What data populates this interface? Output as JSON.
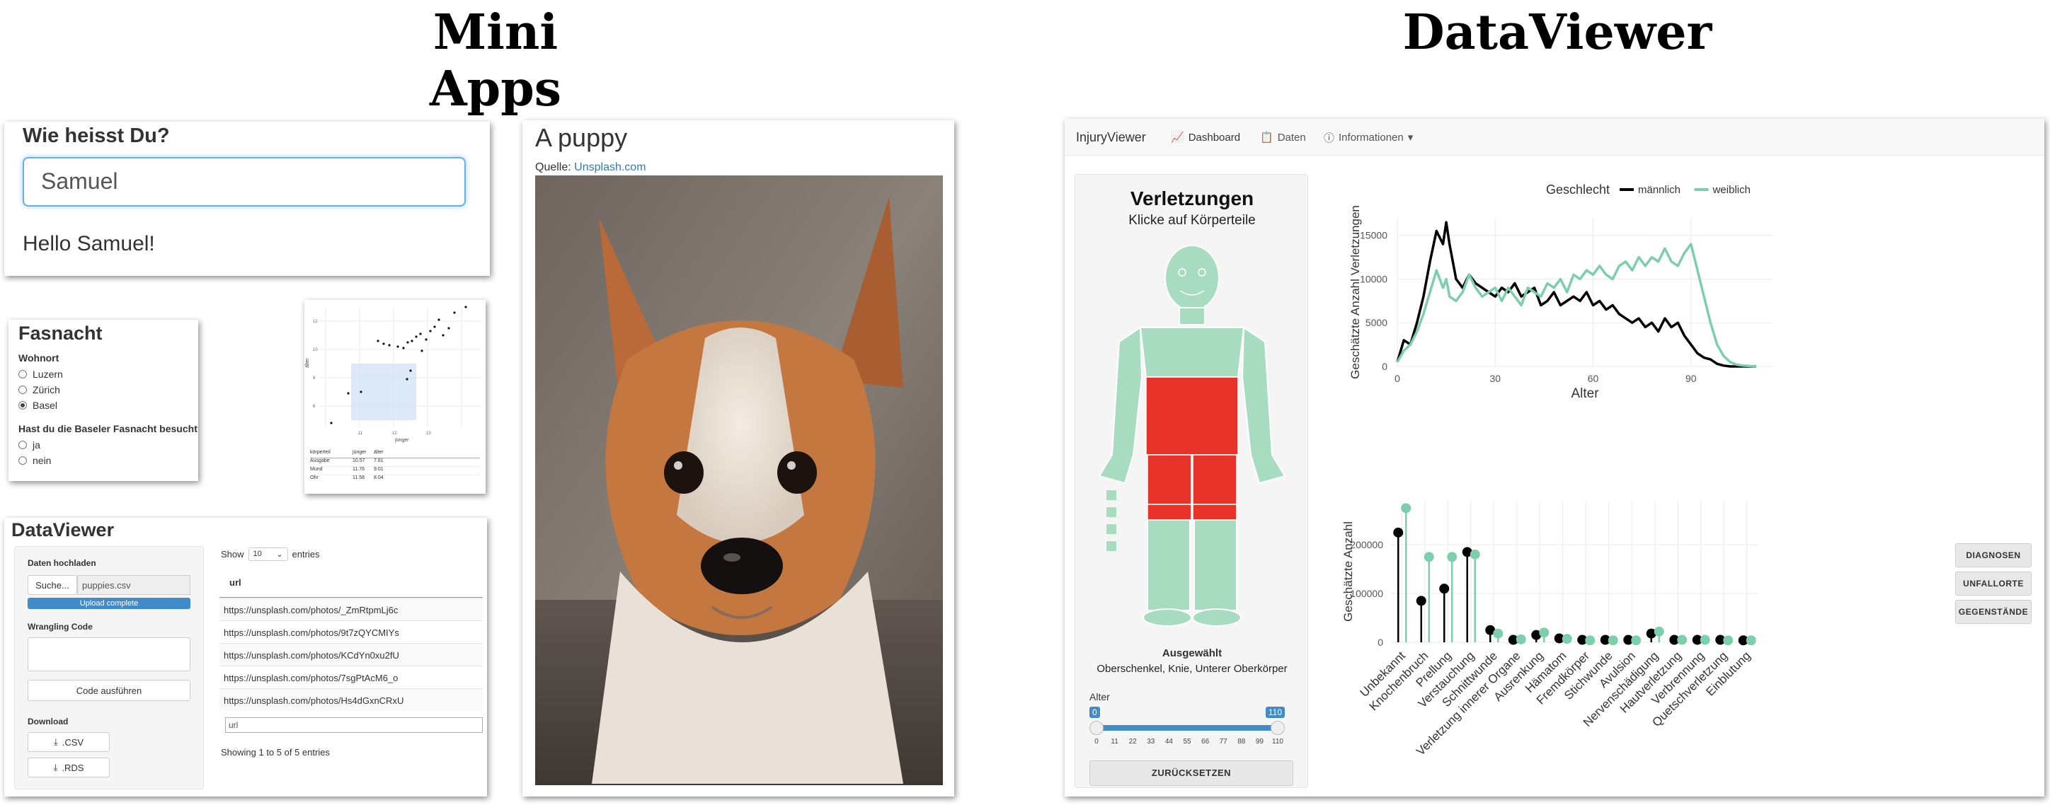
{
  "titles": {
    "left": "Mini Apps",
    "right": "DataViewer"
  },
  "name_app": {
    "heading": "Wie heisst Du?",
    "input_value": "Samuel",
    "greeting": "Hello Samuel!"
  },
  "fasnacht": {
    "heading": "Fasnacht",
    "q1": "Wohnort",
    "q1_options": [
      "Luzern",
      "Zürich",
      "Basel"
    ],
    "q1_selected": 2,
    "q2": "Hast du die Baseler Fasnacht besucht?",
    "q2_options": [
      "ja",
      "nein"
    ],
    "plot_xlabel": "jünger",
    "plot_ylabel": "älter",
    "table_headers": [
      "körperteil",
      "jünger",
      "älter"
    ],
    "table_rows": [
      [
        "Ausgabe",
        "10.57",
        "7.81"
      ],
      [
        "Mund",
        "11.76",
        "9.01"
      ],
      [
        "Ohr",
        "11.58",
        "8.04"
      ]
    ]
  },
  "dataviewer": {
    "heading": "DataViewer",
    "upload_label": "Daten hochladen",
    "browse_label": "Suche...",
    "file_name": "puppies.csv",
    "upload_status": "Upload complete",
    "code_label": "Wrangling Code",
    "run_label": "Code ausführen",
    "download_label": "Download",
    "csv_label": ".CSV",
    "rds_label": ".RDS",
    "show_label": "Show",
    "show_value": "10",
    "entries_label": "entries",
    "column_header": "url",
    "urls": [
      "https://unsplash.com/photos/_ZmRtpmLj6c",
      "https://unsplash.com/photos/9t7zQYCMIYs",
      "https://unsplash.com/photos/KCdYn0xu2fU",
      "https://unsplash.com/photos/7sgPtAcM6_o",
      "https://unsplash.com/photos/Hs4dGxnCRxU"
    ],
    "filter_placeholder": "url",
    "footer": "Showing 1 to 5 of 5 entries"
  },
  "puppy": {
    "heading": "A puppy",
    "source_label": "Quelle:",
    "source_link": "Unsplash.com"
  },
  "injury": {
    "brand": "InjuryViewer",
    "nav": [
      "Dashboard",
      "Daten",
      "Informationen"
    ],
    "panel_title": "Verletzungen",
    "panel_subtitle": "Klicke auf Körperteile",
    "selected_label": "Ausgewählt",
    "selected_value": "Oberschenkel, Knie, Unterer Oberkörper",
    "age_label": "Alter",
    "slider_min": "0",
    "slider_max": "110",
    "slider_ticks": [
      "0",
      "11",
      "22",
      "33",
      "44",
      "55",
      "66",
      "77",
      "88",
      "99",
      "110"
    ],
    "reset_label": "ZURÜCKSETZEN",
    "side_buttons": [
      "DIAGNOSEN",
      "UNFALLORTE",
      "GEGENSTÄNDE"
    ],
    "colors": {
      "male": "#000000",
      "female": "#7dcfac",
      "body": "#a8dcc0",
      "selected": "#e8332a",
      "accent": "#428bca"
    }
  },
  "chart_data": [
    {
      "type": "line",
      "legend_title": "Geschlecht",
      "xlabel": "Alter",
      "ylabel": "Geschätzte Anzahl Verletzungen",
      "xticks": [
        "0",
        "30",
        "60",
        "90"
      ],
      "yticks": [
        "0",
        "5000",
        "10000",
        "15000"
      ],
      "xlim": [
        0,
        115
      ],
      "ylim": [
        0,
        17000
      ],
      "legend_position": "top",
      "grid": true,
      "x": [
        0,
        2,
        4,
        6,
        8,
        10,
        12,
        14,
        15,
        16,
        18,
        20,
        22,
        24,
        26,
        28,
        30,
        32,
        34,
        36,
        38,
        40,
        42,
        44,
        46,
        48,
        50,
        52,
        54,
        56,
        58,
        60,
        62,
        64,
        66,
        68,
        70,
        72,
        74,
        76,
        78,
        80,
        82,
        84,
        86,
        88,
        90,
        92,
        94,
        96,
        98,
        100,
        102,
        104,
        106,
        110
      ],
      "series": [
        {
          "name": "männlich",
          "values": [
            500,
            3000,
            2500,
            5000,
            8000,
            12000,
            15500,
            14000,
            16500,
            14000,
            10000,
            9000,
            10500,
            9500,
            9000,
            8500,
            8000,
            9000,
            8500,
            9500,
            8000,
            8500,
            9000,
            7000,
            7500,
            8500,
            7000,
            7500,
            8000,
            7500,
            8500,
            7000,
            7500,
            6500,
            7000,
            6000,
            5500,
            5000,
            5500,
            4500,
            5000,
            4000,
            5500,
            4500,
            5000,
            3500,
            2500,
            1500,
            1000,
            800,
            300,
            100,
            0,
            0,
            0,
            0
          ],
          "color": "#000000"
        },
        {
          "name": "weiblich",
          "values": [
            500,
            1800,
            2500,
            4000,
            6000,
            8500,
            11000,
            9000,
            10000,
            8000,
            7500,
            8500,
            10500,
            9000,
            8000,
            8500,
            9000,
            7500,
            9000,
            8000,
            7000,
            9000,
            8500,
            8000,
            9500,
            9000,
            10000,
            8500,
            10500,
            10000,
            11000,
            10500,
            11500,
            10500,
            10000,
            11500,
            12000,
            11000,
            12500,
            11500,
            12500,
            12000,
            13500,
            12000,
            11500,
            13000,
            14000,
            11000,
            8000,
            5000,
            2500,
            1200,
            500,
            200,
            100,
            0
          ],
          "color": "#7dcfac"
        }
      ]
    },
    {
      "type": "lollipop",
      "ylabel": "Geschätzte Anzahl",
      "yticks": [
        "0",
        "100000",
        "200000"
      ],
      "ylim": [
        0,
        290000
      ],
      "grid": true,
      "categories": [
        "Unbekannt",
        "Knochenbruch",
        "Prellung",
        "Verstauchung",
        "Schnittwunde",
        "Verletzung innerer Organe",
        "Ausrenkung",
        "Hämatom",
        "Fremdkörper",
        "Stichwunde",
        "Avulsion",
        "Nervenschädigung",
        "Hautverletzung",
        "Verbrennung",
        "Quetschverletzung",
        "Einblutung"
      ],
      "series": [
        {
          "name": "männlich",
          "values": [
            225000,
            85000,
            110000,
            185000,
            25000,
            5000,
            15000,
            8000,
            5000,
            5000,
            5000,
            18000,
            5000,
            5000,
            5000,
            4000
          ],
          "color": "#000000"
        },
        {
          "name": "weiblich",
          "values": [
            275000,
            175000,
            175000,
            180000,
            18000,
            6000,
            20000,
            7000,
            4000,
            4000,
            4000,
            22000,
            5000,
            5000,
            4000,
            4000
          ],
          "color": "#7dcfac"
        }
      ]
    }
  ]
}
